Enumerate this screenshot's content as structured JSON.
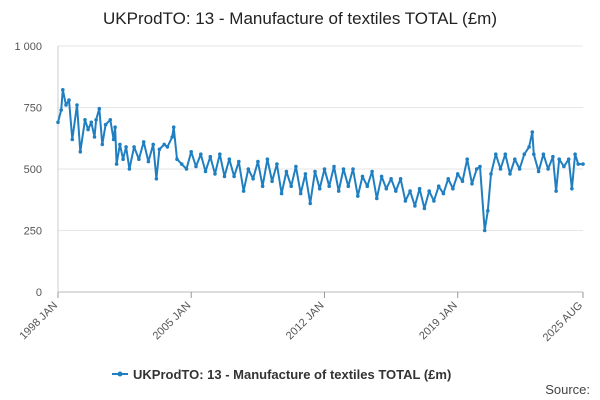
{
  "chart_data": {
    "type": "line",
    "title": "UKProdTO: 13 - Manufacture of textiles TOTAL (£m)",
    "xlabel": "",
    "ylabel": "",
    "x_range": [
      "1998 JAN",
      "2025 AUG"
    ],
    "ylim": [
      0,
      1000
    ],
    "y_ticks": [
      {
        "value": 0,
        "label": "0"
      },
      {
        "value": 250,
        "label": "250"
      },
      {
        "value": 500,
        "label": "500"
      },
      {
        "value": 750,
        "label": "750"
      },
      {
        "value": 1000,
        "label": "1 000"
      }
    ],
    "x_ticks": [
      {
        "value": 1998.0,
        "label": "1998 JAN"
      },
      {
        "value": 2005.0,
        "label": "2005 JAN"
      },
      {
        "value": 2012.0,
        "label": "2012 JAN"
      },
      {
        "value": 2019.0,
        "label": "2019 JAN"
      },
      {
        "value": 2025.583,
        "label": "2025 AUG"
      }
    ],
    "grid": "horizontal",
    "legend_position": "bottom",
    "color": "#1f7fc1",
    "series": [
      {
        "name": "UKProdTO: 13 - Manufacture of textiles TOTAL (£m)",
        "points": [
          [
            1998.0,
            690
          ],
          [
            1998.17,
            740
          ],
          [
            1998.25,
            822
          ],
          [
            1998.42,
            760
          ],
          [
            1998.58,
            780
          ],
          [
            1998.75,
            620
          ],
          [
            1999.0,
            760
          ],
          [
            1999.17,
            570
          ],
          [
            1999.42,
            700
          ],
          [
            1999.58,
            660
          ],
          [
            1999.75,
            690
          ],
          [
            1999.92,
            630
          ],
          [
            2000.0,
            700
          ],
          [
            2000.17,
            745
          ],
          [
            2000.33,
            600
          ],
          [
            2000.5,
            680
          ],
          [
            2000.75,
            700
          ],
          [
            2000.92,
            620
          ],
          [
            2001.0,
            670
          ],
          [
            2001.08,
            520
          ],
          [
            2001.25,
            600
          ],
          [
            2001.42,
            540
          ],
          [
            2001.58,
            590
          ],
          [
            2001.75,
            500
          ],
          [
            2002.0,
            590
          ],
          [
            2002.25,
            540
          ],
          [
            2002.5,
            610
          ],
          [
            2002.75,
            530
          ],
          [
            2003.0,
            600
          ],
          [
            2003.17,
            460
          ],
          [
            2003.33,
            580
          ],
          [
            2003.58,
            600
          ],
          [
            2003.75,
            590
          ],
          [
            2004.0,
            630
          ],
          [
            2004.08,
            670
          ],
          [
            2004.25,
            540
          ],
          [
            2004.5,
            520
          ],
          [
            2004.75,
            500
          ],
          [
            2005.0,
            570
          ],
          [
            2005.25,
            510
          ],
          [
            2005.5,
            560
          ],
          [
            2005.75,
            490
          ],
          [
            2006.0,
            550
          ],
          [
            2006.25,
            480
          ],
          [
            2006.5,
            560
          ],
          [
            2006.75,
            470
          ],
          [
            2007.0,
            540
          ],
          [
            2007.25,
            470
          ],
          [
            2007.5,
            530
          ],
          [
            2007.75,
            410
          ],
          [
            2008.0,
            500
          ],
          [
            2008.25,
            460
          ],
          [
            2008.5,
            530
          ],
          [
            2008.75,
            430
          ],
          [
            2009.0,
            540
          ],
          [
            2009.25,
            450
          ],
          [
            2009.5,
            520
          ],
          [
            2009.75,
            400
          ],
          [
            2010.0,
            490
          ],
          [
            2010.25,
            430
          ],
          [
            2010.5,
            510
          ],
          [
            2010.75,
            400
          ],
          [
            2011.0,
            480
          ],
          [
            2011.25,
            360
          ],
          [
            2011.5,
            490
          ],
          [
            2011.75,
            420
          ],
          [
            2012.0,
            500
          ],
          [
            2012.25,
            430
          ],
          [
            2012.5,
            510
          ],
          [
            2012.75,
            410
          ],
          [
            2013.0,
            500
          ],
          [
            2013.25,
            430
          ],
          [
            2013.5,
            500
          ],
          [
            2013.75,
            390
          ],
          [
            2014.0,
            470
          ],
          [
            2014.25,
            430
          ],
          [
            2014.5,
            490
          ],
          [
            2014.75,
            380
          ],
          [
            2015.0,
            470
          ],
          [
            2015.25,
            420
          ],
          [
            2015.5,
            460
          ],
          [
            2015.75,
            410
          ],
          [
            2016.0,
            460
          ],
          [
            2016.25,
            370
          ],
          [
            2016.5,
            410
          ],
          [
            2016.75,
            350
          ],
          [
            2017.0,
            420
          ],
          [
            2017.25,
            340
          ],
          [
            2017.5,
            410
          ],
          [
            2017.75,
            370
          ],
          [
            2018.0,
            430
          ],
          [
            2018.25,
            400
          ],
          [
            2018.5,
            460
          ],
          [
            2018.75,
            420
          ],
          [
            2019.0,
            480
          ],
          [
            2019.25,
            450
          ],
          [
            2019.5,
            540
          ],
          [
            2019.75,
            440
          ],
          [
            2020.0,
            500
          ],
          [
            2020.17,
            510
          ],
          [
            2020.42,
            250
          ],
          [
            2020.58,
            330
          ],
          [
            2020.75,
            480
          ],
          [
            2021.0,
            560
          ],
          [
            2021.25,
            500
          ],
          [
            2021.5,
            560
          ],
          [
            2021.75,
            480
          ],
          [
            2022.0,
            540
          ],
          [
            2022.25,
            500
          ],
          [
            2022.5,
            560
          ],
          [
            2022.75,
            590
          ],
          [
            2022.92,
            650
          ],
          [
            2023.0,
            560
          ],
          [
            2023.25,
            490
          ],
          [
            2023.5,
            560
          ],
          [
            2023.75,
            500
          ],
          [
            2024.0,
            550
          ],
          [
            2024.17,
            410
          ],
          [
            2024.33,
            540
          ],
          [
            2024.58,
            510
          ],
          [
            2024.83,
            540
          ],
          [
            2025.0,
            420
          ],
          [
            2025.17,
            560
          ],
          [
            2025.33,
            520
          ],
          [
            2025.583,
            520
          ]
        ]
      }
    ]
  },
  "source_label": "Source:"
}
